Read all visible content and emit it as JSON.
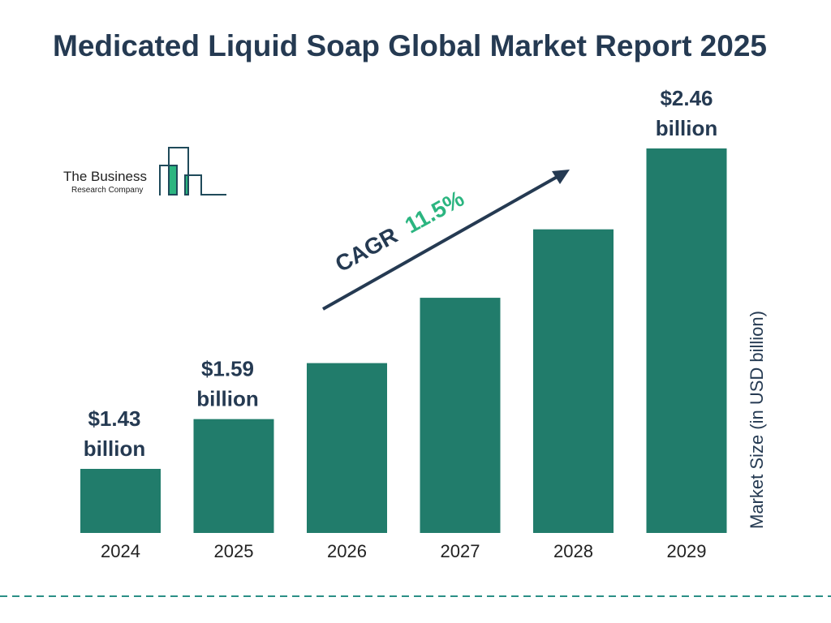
{
  "chart_data": {
    "type": "bar",
    "title": "Medicated Liquid Soap Global Market Report 2025",
    "ylabel": "Market Size (in USD billion)",
    "categories": [
      "2024",
      "2025",
      "2026",
      "2027",
      "2028",
      "2029"
    ],
    "values": [
      1.43,
      1.59,
      1.77,
      1.98,
      2.2,
      2.46
    ],
    "data_labels": [
      {
        "category": "2024",
        "line1": "$1.43",
        "line2": "billion"
      },
      {
        "category": "2025",
        "line1": "$1.59",
        "line2": "billion"
      },
      {
        "category": "2029",
        "line1": "$2.46",
        "line2": "billion"
      }
    ],
    "annotation": {
      "prefix": "CAGR",
      "value": "11.5%"
    },
    "grid": false,
    "colors": {
      "bar": "#217c6b",
      "text": "#253a52",
      "accent": "#2bb580"
    }
  },
  "logo": {
    "line1": "The Business",
    "line2": "Research Company"
  }
}
